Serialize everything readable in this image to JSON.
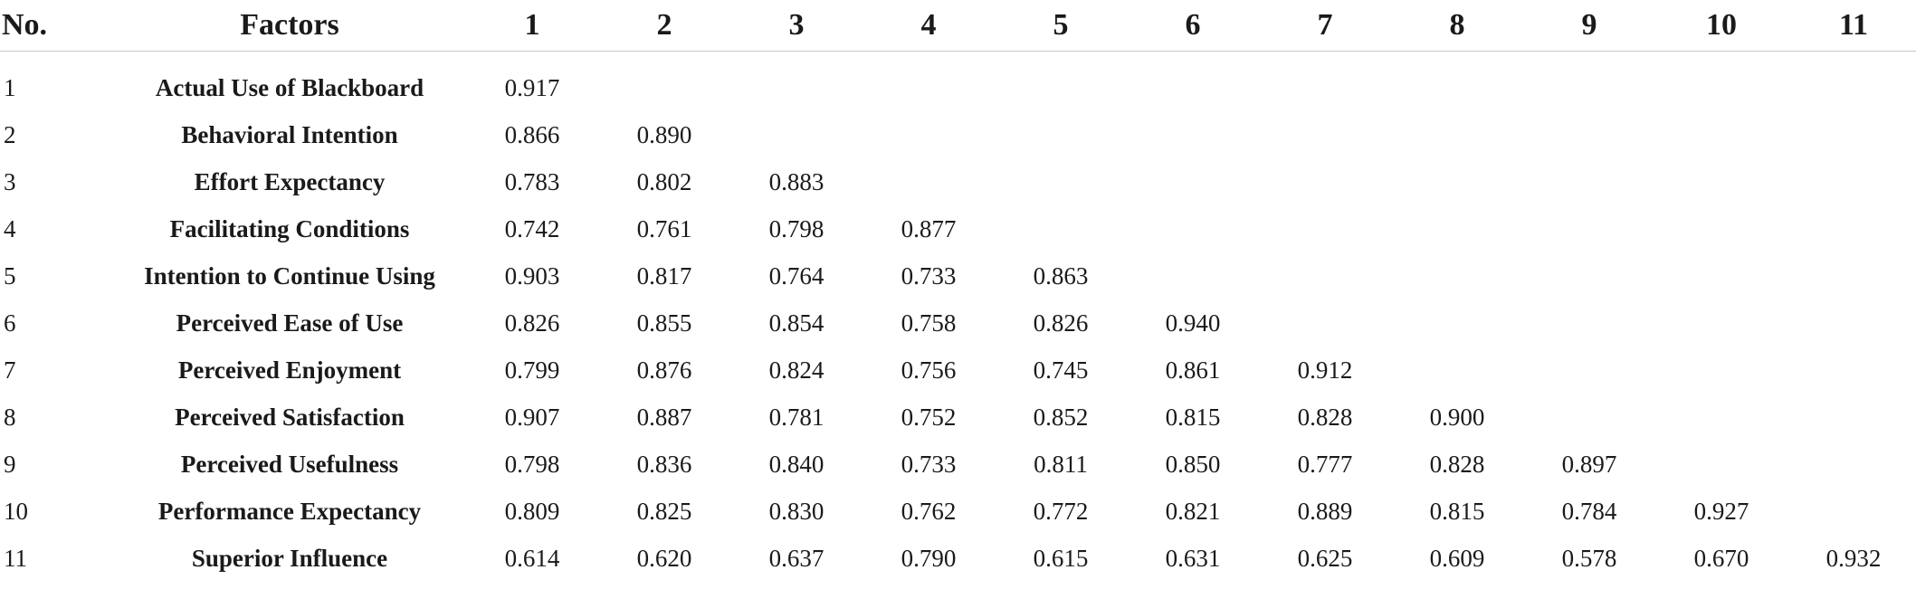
{
  "table": {
    "headers": [
      "No.",
      "Factors",
      "1",
      "2",
      "3",
      "4",
      "5",
      "6",
      "7",
      "8",
      "9",
      "10",
      "11"
    ],
    "rows": [
      {
        "no": "1",
        "factor": "Actual Use of Blackboard",
        "values": [
          "0.917",
          "",
          "",
          "",
          "",
          "",
          "",
          "",
          "",
          "",
          ""
        ]
      },
      {
        "no": "2",
        "factor": "Behavioral Intention",
        "values": [
          "0.866",
          "0.890",
          "",
          "",
          "",
          "",
          "",
          "",
          "",
          "",
          ""
        ]
      },
      {
        "no": "3",
        "factor": "Effort Expectancy",
        "values": [
          "0.783",
          "0.802",
          "0.883",
          "",
          "",
          "",
          "",
          "",
          "",
          "",
          ""
        ]
      },
      {
        "no": "4",
        "factor": "Facilitating Conditions",
        "values": [
          "0.742",
          "0.761",
          "0.798",
          "0.877",
          "",
          "",
          "",
          "",
          "",
          "",
          ""
        ]
      },
      {
        "no": "5",
        "factor": "Intention to Continue Using",
        "values": [
          "0.903",
          "0.817",
          "0.764",
          "0.733",
          "0.863",
          "",
          "",
          "",
          "",
          "",
          ""
        ]
      },
      {
        "no": "6",
        "factor": "Perceived Ease of Use",
        "values": [
          "0.826",
          "0.855",
          "0.854",
          "0.758",
          "0.826",
          "0.940",
          "",
          "",
          "",
          "",
          ""
        ]
      },
      {
        "no": "7",
        "factor": "Perceived Enjoyment",
        "values": [
          "0.799",
          "0.876",
          "0.824",
          "0.756",
          "0.745",
          "0.861",
          "0.912",
          "",
          "",
          "",
          ""
        ]
      },
      {
        "no": "8",
        "factor": "Perceived Satisfaction",
        "values": [
          "0.907",
          "0.887",
          "0.781",
          "0.752",
          "0.852",
          "0.815",
          "0.828",
          "0.900",
          "",
          "",
          ""
        ]
      },
      {
        "no": "9",
        "factor": "Perceived Usefulness",
        "values": [
          "0.798",
          "0.836",
          "0.840",
          "0.733",
          "0.811",
          "0.850",
          "0.777",
          "0.828",
          "0.897",
          "",
          ""
        ]
      },
      {
        "no": "10",
        "factor": "Performance Expectancy",
        "values": [
          "0.809",
          "0.825",
          "0.830",
          "0.762",
          "0.772",
          "0.821",
          "0.889",
          "0.815",
          "0.784",
          "0.927",
          ""
        ]
      },
      {
        "no": "11",
        "factor": "Superior Influence",
        "values": [
          "0.614",
          "0.620",
          "0.637",
          "0.790",
          "0.615",
          "0.631",
          "0.625",
          "0.609",
          "0.578",
          "0.670",
          "0.932"
        ]
      }
    ]
  }
}
